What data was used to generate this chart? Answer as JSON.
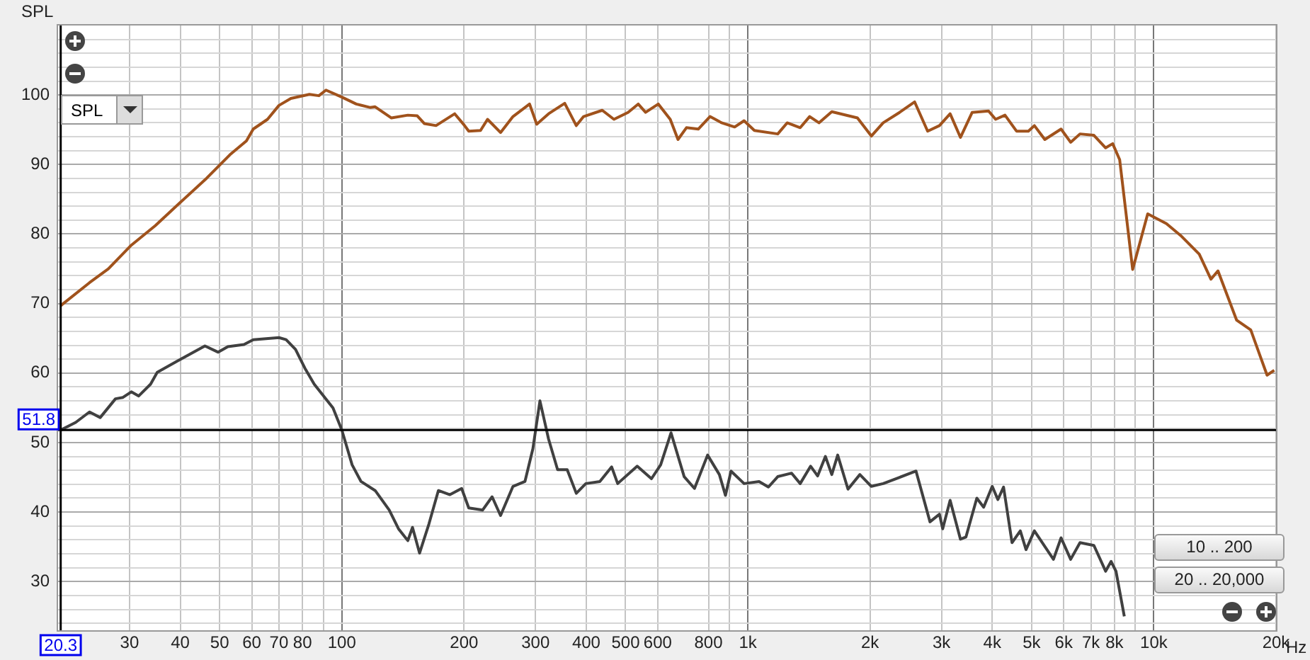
{
  "chart_data": {
    "type": "line",
    "ylabel": "SPL",
    "log": "x",
    "grid": true,
    "legend": false,
    "xlim": [
      20,
      20000
    ],
    "ylim": [
      23,
      110
    ],
    "xticks": [
      30,
      40,
      50,
      60,
      70,
      80,
      {
        "value": 90,
        "label": null
      },
      100,
      200,
      300,
      400,
      500,
      600,
      800,
      {
        "value": 900,
        "label": null
      },
      {
        "value": 1000,
        "label": "1k"
      },
      {
        "value": 2000,
        "label": "2k"
      },
      {
        "value": 3000,
        "label": "3k"
      },
      {
        "value": 4000,
        "label": "4k"
      },
      {
        "value": 5000,
        "label": "5k"
      },
      {
        "value": 6000,
        "label": "6k"
      },
      {
        "value": 7000,
        "label": "7k"
      },
      {
        "value": 8000,
        "label": "8k"
      },
      {
        "value": 9000,
        "label": null
      },
      {
        "value": 10000,
        "label": "10k"
      },
      {
        "value": 20000,
        "label": "20k"
      }
    ],
    "xlabel": "Hz",
    "yticks": [
      {
        "value": 24,
        "label": null
      },
      {
        "value": 26,
        "label": null
      },
      {
        "value": 28,
        "label": null
      },
      30,
      {
        "value": 32,
        "label": null
      },
      {
        "value": 34,
        "label": null
      },
      {
        "value": 36,
        "label": null
      },
      {
        "value": 38,
        "label": null
      },
      40,
      {
        "value": 42,
        "label": null
      },
      {
        "value": 44,
        "label": null
      },
      {
        "value": 46,
        "label": null
      },
      {
        "value": 48,
        "label": null
      },
      50,
      {
        "value": 52,
        "label": null
      },
      {
        "value": 54,
        "label": null
      },
      {
        "value": 56,
        "label": null
      },
      {
        "value": 58,
        "label": null
      },
      60,
      {
        "value": 62,
        "label": null
      },
      {
        "value": 64,
        "label": null
      },
      {
        "value": 66,
        "label": null
      },
      {
        "value": 68,
        "label": null
      },
      70,
      {
        "value": 72,
        "label": null
      },
      {
        "value": 74,
        "label": null
      },
      {
        "value": 76,
        "label": null
      },
      {
        "value": 78,
        "label": null
      },
      80,
      {
        "value": 82,
        "label": null
      },
      {
        "value": 84,
        "label": null
      },
      {
        "value": 86,
        "label": null
      },
      {
        "value": 88,
        "label": null
      },
      90,
      {
        "value": 92,
        "label": null
      },
      {
        "value": 94,
        "label": null
      },
      {
        "value": 96,
        "label": null
      },
      {
        "value": 98,
        "label": null
      },
      100,
      {
        "value": 102,
        "label": null
      },
      {
        "value": 104,
        "label": null
      },
      {
        "value": 106,
        "label": null
      },
      {
        "value": 108,
        "label": null
      }
    ],
    "ref_lines": [
      {
        "axis": "y",
        "value": 51.8,
        "label": "51.8",
        "color": "#000000"
      },
      {
        "axis": "x",
        "value": 20.3,
        "label": "20.3",
        "color": "#000000"
      }
    ],
    "annotations": [
      "10 .. 200",
      "20 .. 20,000"
    ],
    "series": [
      {
        "color": "#a0521c",
        "x": [
          20.3,
          23.9,
          26.6,
          30.3,
          34.7,
          40.1,
          46.4,
          53,
          58.2,
          60.5,
          65.6,
          70,
          74.9,
          83.2,
          87.8,
          91.4,
          100,
          108.5,
          117.6,
          120.8,
          132.5,
          145.4,
          153.4,
          159.6,
          170.6,
          189.7,
          200,
          205.4,
          219.6,
          228.5,
          246,
          264,
          290,
          302,
          323,
          354,
          378,
          394,
          438,
          468,
          507,
          537,
          560,
          602,
          644,
          673,
          706,
          755,
          807,
          862,
          928,
          979,
          1038,
          1185,
          1250,
          1346,
          1420,
          1497,
          1610,
          1862,
          2015,
          2155,
          2365,
          2576,
          2773,
          2965,
          3150,
          3340,
          3570,
          3917,
          4077,
          4300,
          4590,
          4910,
          5080,
          5390,
          5910,
          6240,
          6580,
          7120,
          7610,
          7920,
          8240,
          8870,
          9660,
          10740,
          11640,
          12940,
          13830,
          14390,
          16000,
          17330,
          19010,
          19800
        ],
        "values": [
          69.7,
          73.0,
          75.0,
          78.4,
          81.2,
          84.6,
          88.0,
          91.4,
          93.4,
          95.1,
          96.5,
          98.5,
          99.5,
          100.1,
          99.9,
          100.7,
          99.7,
          98.7,
          98.2,
          98.3,
          96.7,
          97.1,
          97.0,
          95.9,
          95.6,
          97.3,
          95.7,
          94.8,
          94.9,
          96.5,
          94.6,
          96.9,
          98.7,
          95.8,
          97.3,
          98.8,
          95.6,
          96.9,
          97.8,
          96.5,
          97.5,
          98.7,
          97.5,
          98.7,
          96.5,
          93.6,
          95.3,
          95.1,
          96.9,
          96.0,
          95.4,
          96.3,
          94.9,
          94.4,
          96.0,
          95.3,
          96.9,
          96.0,
          97.6,
          96.7,
          94.1,
          96.0,
          97.5,
          99.0,
          94.8,
          95.6,
          97.3,
          93.9,
          97.5,
          97.7,
          96.5,
          97.1,
          94.8,
          94.8,
          95.6,
          93.6,
          95.1,
          93.2,
          94.4,
          94.2,
          92.4,
          93.0,
          90.7,
          74.9,
          82.9,
          81.5,
          79.8,
          77.1,
          73.5,
          74.7,
          67.6,
          66.2,
          59.7,
          60.4
        ]
      },
      {
        "color": "#404040",
        "x": [
          20.3,
          22.1,
          23.9,
          25.4,
          27.7,
          28.9,
          30.3,
          31.6,
          33.8,
          35.1,
          40.1,
          46,
          49.6,
          52.4,
          57.4,
          60.5,
          70,
          72.9,
          76.9,
          81.1,
          85.5,
          95.1,
          100,
          106,
          111.5,
          120.8,
          130.8,
          137.9,
          145.4,
          149.3,
          155.4,
          163.9,
          172.9,
          184.6,
          197.3,
          205.4,
          222.3,
          234.5,
          246,
          264,
          282.5,
          295.5,
          307.6,
          323,
          340,
          359,
          378,
          399,
          432,
          462,
          478,
          534,
          579,
          610,
          647,
          697,
          739,
          796,
          851,
          881,
          909,
          979,
          1066,
          1124,
          1185,
          1282,
          1346,
          1428,
          1486,
          1553,
          1610,
          1665,
          1765,
          1888,
          2015,
          2155,
          2365,
          2596,
          2810,
          2965,
          3020,
          3150,
          3340,
          3445,
          3665,
          3810,
          4000,
          4130,
          4265,
          4475,
          4690,
          4845,
          5080,
          5660,
          5910,
          6240,
          6580,
          7120,
          7610,
          7850,
          8070,
          8460
        ],
        "values": [
          51.8,
          52.9,
          54.4,
          53.6,
          56.3,
          56.5,
          57.3,
          56.7,
          58.4,
          60.1,
          62.0,
          63.9,
          63.0,
          63.8,
          64.1,
          64.8,
          65.1,
          64.8,
          63.4,
          60.7,
          58.4,
          55.0,
          51.8,
          46.8,
          44.4,
          43.1,
          40.3,
          37.6,
          35.9,
          37.8,
          34.1,
          38.3,
          43.1,
          42.5,
          43.4,
          40.6,
          40.3,
          42.2,
          39.5,
          43.7,
          44.4,
          49.1,
          56.0,
          50.5,
          46.1,
          46.1,
          42.7,
          44.1,
          44.4,
          46.5,
          44.1,
          46.6,
          44.8,
          46.8,
          51.4,
          45.1,
          43.4,
          48.2,
          45.4,
          42.4,
          45.9,
          44.1,
          44.4,
          43.6,
          45.1,
          45.6,
          44.1,
          46.6,
          45.2,
          48.0,
          45.4,
          48.2,
          43.3,
          45.4,
          43.7,
          44.1,
          45.0,
          45.9,
          38.6,
          39.7,
          37.6,
          41.7,
          36.1,
          36.4,
          42.0,
          40.7,
          43.7,
          41.8,
          43.6,
          35.6,
          37.3,
          34.6,
          37.3,
          33.2,
          36.3,
          33.2,
          35.6,
          35.2,
          31.5,
          32.9,
          31.5,
          25.0
        ]
      }
    ]
  }
}
